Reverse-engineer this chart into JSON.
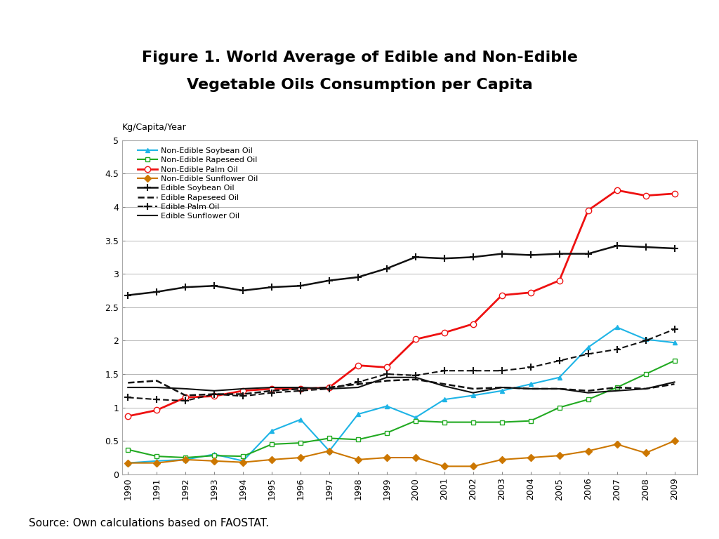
{
  "years": [
    1990,
    1991,
    1992,
    1993,
    1994,
    1995,
    1996,
    1997,
    1998,
    1999,
    2000,
    2001,
    2002,
    2003,
    2004,
    2005,
    2006,
    2007,
    2008,
    2009
  ],
  "non_edible_soybean": [
    0.17,
    0.2,
    0.22,
    0.3,
    0.2,
    0.65,
    0.82,
    0.35,
    0.9,
    1.02,
    0.85,
    1.12,
    1.18,
    1.25,
    1.35,
    1.45,
    1.9,
    2.2,
    2.02,
    1.97
  ],
  "non_edible_rapeseed": [
    0.37,
    0.27,
    0.25,
    0.28,
    0.27,
    0.45,
    0.47,
    0.54,
    0.52,
    0.62,
    0.8,
    0.78,
    0.78,
    0.78,
    0.8,
    1.0,
    1.12,
    1.3,
    1.5,
    1.7
  ],
  "non_edible_palm": [
    0.87,
    0.96,
    1.15,
    1.17,
    1.25,
    1.28,
    1.28,
    1.3,
    1.63,
    1.6,
    2.02,
    2.12,
    2.25,
    2.68,
    2.72,
    2.9,
    3.95,
    4.25,
    4.17,
    4.2
  ],
  "non_edible_sunflower": [
    0.17,
    0.17,
    0.22,
    0.2,
    0.18,
    0.22,
    0.25,
    0.35,
    0.22,
    0.25,
    0.25,
    0.12,
    0.12,
    0.22,
    0.25,
    0.28,
    0.35,
    0.45,
    0.32,
    0.5
  ],
  "edible_soybean": [
    2.68,
    2.73,
    2.8,
    2.82,
    2.75,
    2.8,
    2.82,
    2.9,
    2.95,
    3.08,
    3.25,
    3.23,
    3.25,
    3.3,
    3.28,
    3.3,
    3.3,
    3.42,
    3.4,
    3.38
  ],
  "edible_rapeseed": [
    1.37,
    1.4,
    1.18,
    1.2,
    1.2,
    1.25,
    1.28,
    1.3,
    1.35,
    1.4,
    1.42,
    1.35,
    1.28,
    1.3,
    1.28,
    1.28,
    1.25,
    1.3,
    1.28,
    1.35
  ],
  "edible_palm": [
    1.15,
    1.12,
    1.1,
    1.2,
    1.17,
    1.22,
    1.25,
    1.28,
    1.38,
    1.5,
    1.48,
    1.55,
    1.55,
    1.55,
    1.6,
    1.7,
    1.8,
    1.87,
    2.0,
    2.17
  ],
  "edible_sunflower": [
    1.3,
    1.3,
    1.28,
    1.25,
    1.28,
    1.3,
    1.3,
    1.28,
    1.3,
    1.45,
    1.45,
    1.32,
    1.22,
    1.3,
    1.28,
    1.28,
    1.22,
    1.25,
    1.28,
    1.38
  ],
  "title_line1": "Figure 1. World Average of Edible and Non-Edible",
  "title_line2": "Vegetable Oils Consumption per Capita",
  "ylabel": "Kg/Capita/Year",
  "source": "Source: Own calculations based on FAOSTAT.",
  "ylim": [
    0,
    5
  ],
  "yticks": [
    0,
    0.5,
    1.0,
    1.5,
    2.0,
    2.5,
    3.0,
    3.5,
    4.0,
    4.5,
    5.0
  ],
  "colors": {
    "non_edible_soybean": "#1EB4E6",
    "non_edible_rapeseed": "#22AA22",
    "non_edible_palm": "#EE1111",
    "non_edible_sunflower": "#CC7700",
    "edible": "#111111"
  },
  "legend_entries": [
    "Non-Edible Soybean Oil",
    "Non-Edible Rapeseed Oil",
    "Non-Edible Palm Oil",
    "Non-Edible Sunflower Oil",
    "Edible Soybean Oil",
    "Edible Rapeseed Oil",
    "Edible Palm Oil",
    "Edible Sunflower Oil"
  ]
}
